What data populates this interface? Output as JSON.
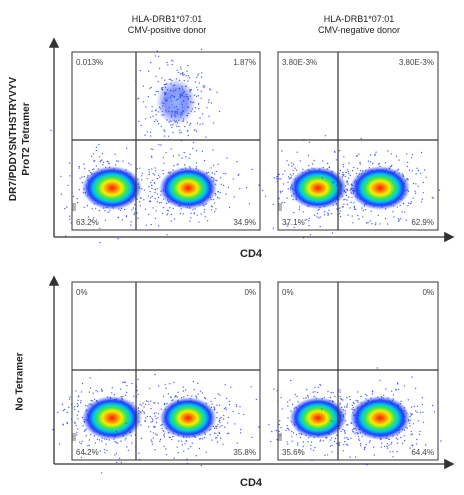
{
  "columns": [
    {
      "title_line1": "HLA-DRB1*07:01",
      "title_line2": "CMV-positive donor"
    },
    {
      "title_line1": "HLA-DRB1*07:01",
      "title_line2": "CMV-negative donor"
    }
  ],
  "rows": [
    {
      "label_line1": "DR7/PDDYSNTHSTRYVYV",
      "label_line2": "ProT2 Tetramer",
      "x_axis_label": "CD4"
    },
    {
      "label_line1": "No Tetramer",
      "label_line2": "",
      "x_axis_label": "CD4"
    }
  ],
  "chart_data": {
    "type": "scatter",
    "description_kind": "flow cytometry quadrant density plots",
    "x_axis_label": "CD4",
    "plots": [
      {
        "row": 0,
        "col": 0,
        "quadrants": {
          "top_left": "0.013%",
          "top_right": "1.87%",
          "bottom_left": "63.2%",
          "bottom_right": "34.9%"
        },
        "populations": [
          {
            "quadrant": "bottom_left",
            "density": 1.0
          },
          {
            "quadrant": "bottom_right",
            "density": 0.85
          },
          {
            "quadrant": "top_right",
            "density": 0.25
          }
        ]
      },
      {
        "row": 0,
        "col": 1,
        "quadrants": {
          "top_left": "3.80E-3%",
          "top_right": "3.80E-3%",
          "bottom_left": "37.1%",
          "bottom_right": "62.9%"
        },
        "populations": [
          {
            "quadrant": "bottom_left",
            "density": 0.85
          },
          {
            "quadrant": "bottom_right",
            "density": 1.0
          }
        ]
      },
      {
        "row": 1,
        "col": 0,
        "quadrants": {
          "top_left": "0%",
          "top_right": "0%",
          "bottom_left": "64.2%",
          "bottom_right": "35.8%"
        },
        "populations": [
          {
            "quadrant": "bottom_left",
            "density": 1.0
          },
          {
            "quadrant": "bottom_right",
            "density": 0.8
          }
        ]
      },
      {
        "row": 1,
        "col": 1,
        "quadrants": {
          "top_left": "0%",
          "top_right": "0%",
          "bottom_left": "35.6%",
          "bottom_right": "64.4%"
        },
        "populations": [
          {
            "quadrant": "bottom_left",
            "density": 0.8
          },
          {
            "quadrant": "bottom_right",
            "density": 1.0
          }
        ]
      }
    ]
  }
}
